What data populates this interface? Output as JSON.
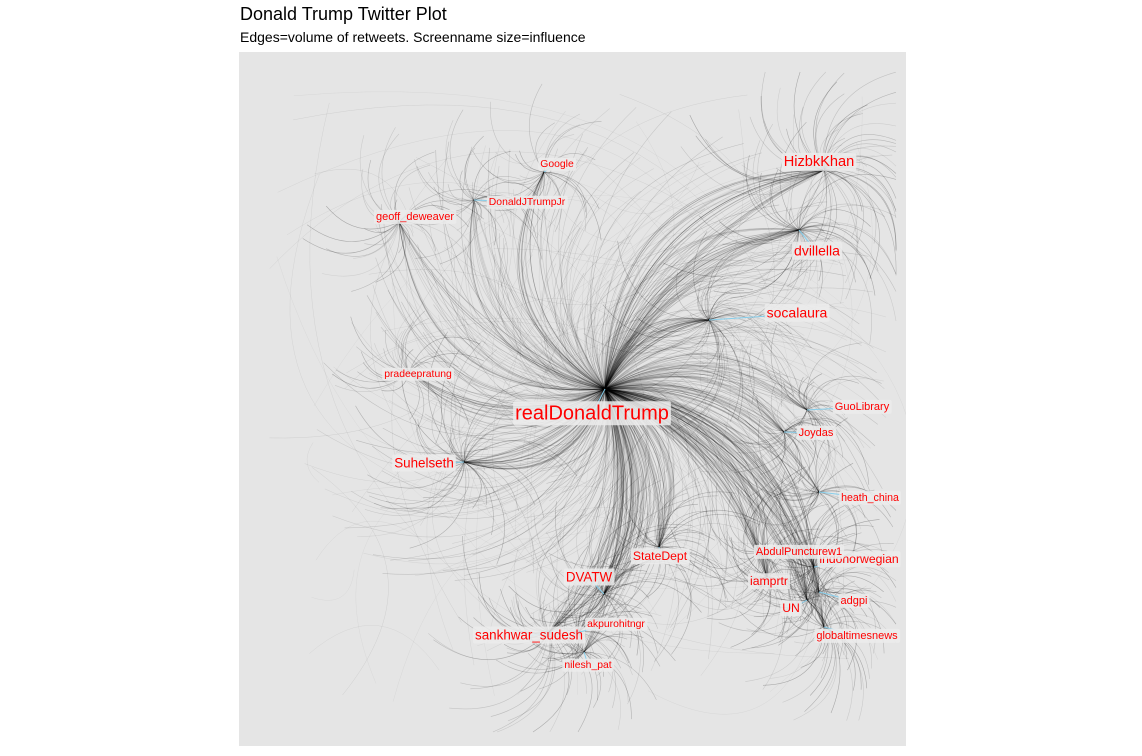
{
  "chart_data": {
    "type": "network",
    "title": "Donald Trump Twitter Plot",
    "subtitle": "Edges=volume of retweets. Screenname size=influence",
    "panel_background": "#e5e5e5",
    "edge_color": "#000000",
    "label_color": "#ff0000",
    "connector_color": "#87ceeb",
    "grid": false,
    "nodes": [
      {
        "name": "realDonaldTrump",
        "influence": 1.0
      },
      {
        "name": "HizbkKhan",
        "influence": 0.55
      },
      {
        "name": "dvillella",
        "influence": 0.5
      },
      {
        "name": "socalaura",
        "influence": 0.5
      },
      {
        "name": "Suhelseth",
        "influence": 0.45
      },
      {
        "name": "DVATW",
        "influence": 0.45
      },
      {
        "name": "sankhwar_sudesh",
        "influence": 0.45
      },
      {
        "name": "StateDept",
        "influence": 0.35
      },
      {
        "name": "iamprtr",
        "influence": 0.35
      },
      {
        "name": "UN",
        "influence": 0.35
      },
      {
        "name": "indonorwegian",
        "influence": 0.35
      },
      {
        "name": "GuoLibrary",
        "influence": 0.25
      },
      {
        "name": "Joydas",
        "influence": 0.25
      },
      {
        "name": "heath_china",
        "influence": 0.22
      },
      {
        "name": "AbdulPuncturew1",
        "influence": 0.25
      },
      {
        "name": "adgpi",
        "influence": 0.25
      },
      {
        "name": "globaltimesnews",
        "influence": 0.25
      },
      {
        "name": "akpurohitngr",
        "influence": 0.2
      },
      {
        "name": "nilesh_pat",
        "influence": 0.2
      },
      {
        "name": "pradeepratung",
        "influence": 0.2
      },
      {
        "name": "geoff_deweaver",
        "influence": 0.25
      },
      {
        "name": "DonaldJTrumpJr",
        "influence": 0.2
      },
      {
        "name": "Google",
        "influence": 0.2
      }
    ]
  }
}
